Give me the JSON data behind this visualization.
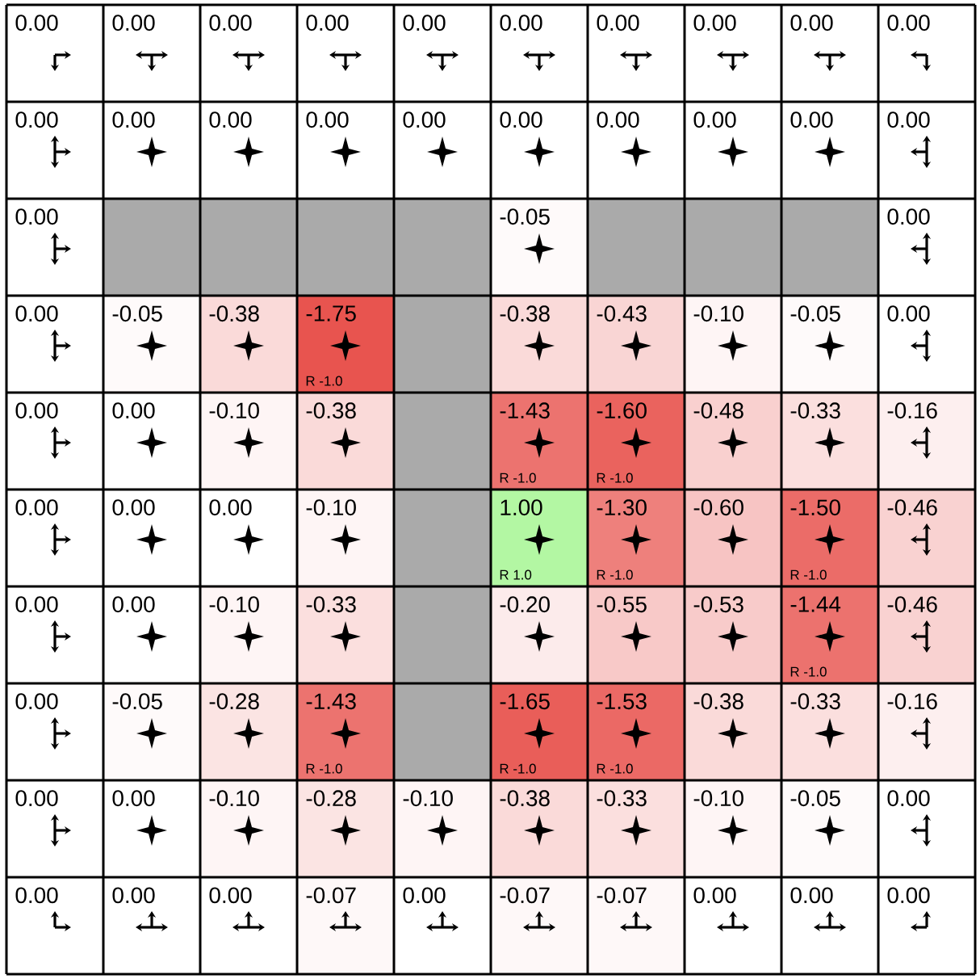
{
  "chart_data": {
    "type": "heatmap",
    "categories": [
      null,
      null,
      null,
      null,
      null,
      null,
      null,
      null,
      null,
      null
    ],
    "y_categories": [
      null,
      null,
      null,
      null,
      null,
      null,
      null,
      null,
      null,
      null
    ],
    "cells": [
      [
        0,
        0,
        0,
        0,
        0,
        0,
        0,
        0,
        0,
        0
      ],
      [
        0,
        0,
        0,
        0,
        0,
        0,
        0,
        0,
        0,
        0
      ],
      [
        0,
        null,
        null,
        null,
        null,
        -0.05,
        null,
        null,
        null,
        0
      ],
      [
        0,
        -0.05,
        -0.38,
        -1.75,
        null,
        -0.38,
        -0.43,
        -0.1,
        -0.05,
        0
      ],
      [
        0,
        0,
        -0.1,
        -0.38,
        null,
        -1.43,
        -1.6,
        -0.48,
        -0.33,
        -0.16
      ],
      [
        0,
        0,
        0,
        -0.1,
        null,
        1.0,
        -1.3,
        -0.6,
        -1.5,
        -0.46
      ],
      [
        0,
        0,
        -0.1,
        -0.33,
        null,
        -0.2,
        -0.55,
        -0.53,
        -1.44,
        -0.46
      ],
      [
        0,
        -0.05,
        -0.28,
        -1.43,
        null,
        -1.65,
        -1.53,
        -0.38,
        -0.33,
        -0.16
      ],
      [
        0,
        0,
        -0.1,
        -0.28,
        -0.1,
        -0.38,
        -0.33,
        -0.1,
        -0.05,
        0
      ],
      [
        0,
        0,
        0,
        -0.07,
        0,
        -0.07,
        -0.07,
        0,
        0,
        0
      ]
    ],
    "cell_labels": [
      [
        "0.00",
        "0.00",
        "0.00",
        "0.00",
        "0.00",
        "0.00",
        "0.00",
        "0.00",
        "0.00",
        "0.00"
      ],
      [
        "0.00",
        "0.00",
        "0.00",
        "0.00",
        "0.00",
        "0.00",
        "0.00",
        "0.00",
        "0.00",
        "0.00"
      ],
      [
        "0.00",
        null,
        null,
        null,
        null,
        "-0.05",
        null,
        null,
        null,
        "0.00"
      ],
      [
        "0.00",
        "-0.05",
        "-0.38",
        "-1.75",
        null,
        "-0.38",
        "-0.43",
        "-0.10",
        "-0.05",
        "0.00"
      ],
      [
        "0.00",
        "0.00",
        "-0.10",
        "-0.38",
        null,
        "-1.43",
        "-1.60",
        "-0.48",
        "-0.33",
        "-0.16"
      ],
      [
        "0.00",
        "0.00",
        "0.00",
        "-0.10",
        null,
        "1.00",
        "-1.30",
        "-0.60",
        "-1.50",
        "-0.46"
      ],
      [
        "0.00",
        "0.00",
        "-0.10",
        "-0.33",
        null,
        "-0.20",
        "-0.55",
        "-0.53",
        "-1.44",
        "-0.46"
      ],
      [
        "0.00",
        "-0.05",
        "-0.28",
        "-1.43",
        null,
        "-1.65",
        "-1.53",
        "-0.38",
        "-0.33",
        "-0.16"
      ],
      [
        "0.00",
        "0.00",
        "-0.10",
        "-0.28",
        "-0.10",
        "-0.38",
        "-0.33",
        "-0.10",
        "-0.05",
        "0.00"
      ],
      [
        "0.00",
        "0.00",
        "0.00",
        "-0.07",
        "0.00",
        "-0.07",
        "-0.07",
        "0.00",
        "0.00",
        "0.00"
      ]
    ],
    "annotations": [
      "R -1.0",
      "R -1.0",
      "R -1.0",
      "R 1.0",
      "R -1.0",
      "R -1.0",
      "R -1.0",
      "R -1.0",
      "R -1.0",
      "R -1.0"
    ]
  }
}
